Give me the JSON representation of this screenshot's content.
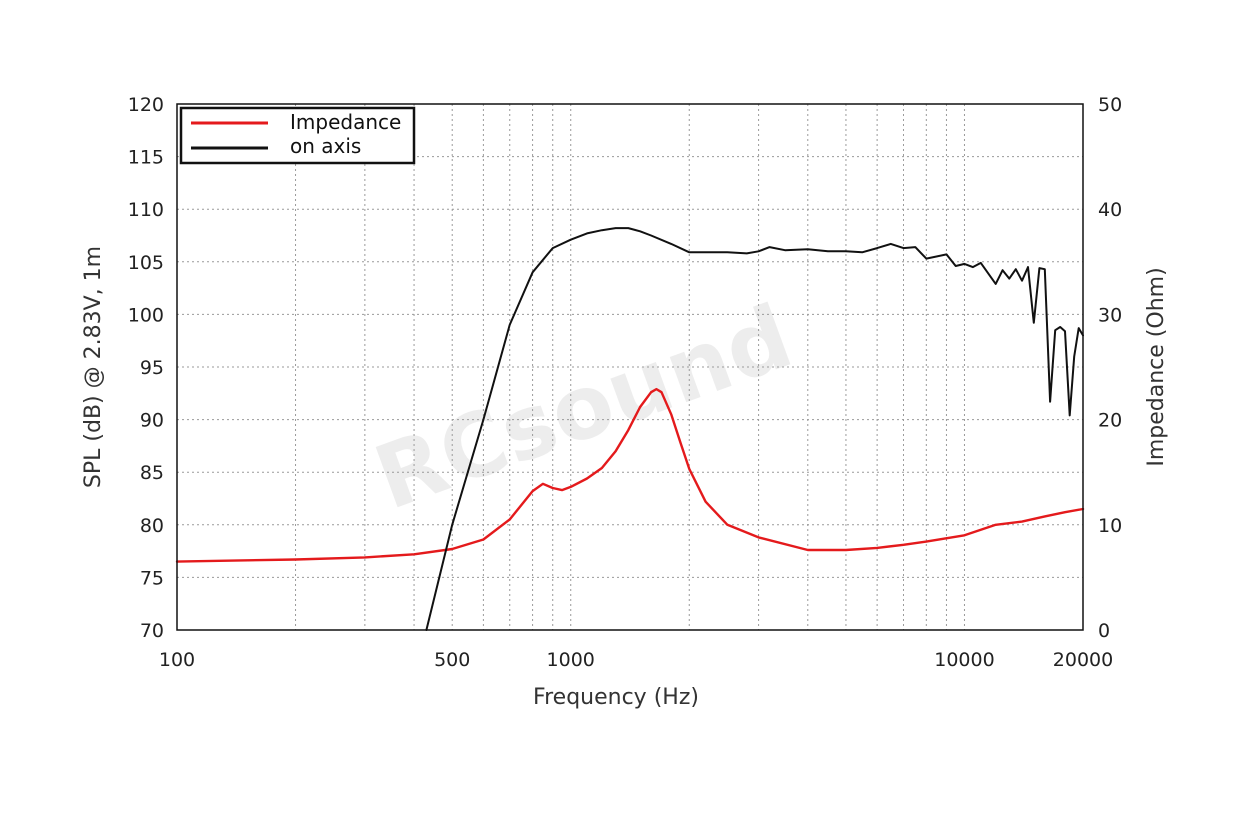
{
  "chart_data": {
    "type": "line",
    "title": "",
    "xlabel": "Frequency (Hz)",
    "ylabel": "SPL (dB) @ 2.83V, 1m",
    "y2label": "Impedance (Ohm)",
    "x_scale": "log",
    "xlim": [
      100,
      20000
    ],
    "ylim": [
      70,
      120
    ],
    "y2lim": [
      0,
      50
    ],
    "x_tick_labels": [
      "100",
      "500",
      "1000",
      "10000",
      "20000"
    ],
    "y_tick_labels": [
      "120",
      "115",
      "110",
      "105",
      "100",
      "95",
      "90",
      "85",
      "80",
      "75",
      "70"
    ],
    "y2_tick_labels": [
      "50",
      "40",
      "30",
      "20",
      "10",
      "0"
    ],
    "grid": true,
    "legend_position": "top-left",
    "watermark": "RCsound",
    "colors": {
      "impedance": "#e41a1c",
      "on_axis": "#111111"
    },
    "series": [
      {
        "name": "Impedance",
        "axis": "right",
        "color": "#e41a1c",
        "x": [
          100,
          200,
          300,
          400,
          500,
          600,
          700,
          800,
          850,
          900,
          950,
          1000,
          1100,
          1200,
          1300,
          1400,
          1500,
          1600,
          1650,
          1700,
          1800,
          1900,
          2000,
          2200,
          2500,
          3000,
          4000,
          5000,
          6000,
          7000,
          8000,
          10000,
          12000,
          14000,
          16000,
          18000,
          20000
        ],
        "values": [
          6.5,
          6.7,
          6.9,
          7.2,
          7.7,
          8.6,
          10.5,
          13.2,
          13.9,
          13.5,
          13.3,
          13.6,
          14.4,
          15.4,
          17.0,
          19.0,
          21.2,
          22.6,
          22.9,
          22.6,
          20.5,
          17.8,
          15.3,
          12.2,
          10.0,
          8.8,
          7.6,
          7.6,
          7.8,
          8.1,
          8.4,
          9.0,
          10.0,
          10.3,
          10.8,
          11.2,
          11.5
        ]
      },
      {
        "name": "on axis",
        "axis": "left",
        "color": "#111111",
        "x": [
          430,
          500,
          600,
          700,
          800,
          900,
          1000,
          1100,
          1200,
          1300,
          1400,
          1500,
          1600,
          1800,
          2000,
          2200,
          2500,
          2800,
          3000,
          3200,
          3500,
          4000,
          4500,
          5000,
          5500,
          6000,
          6500,
          7000,
          7500,
          8000,
          9000,
          9500,
          10000,
          10500,
          11000,
          12000,
          12500,
          13000,
          13500,
          14000,
          14500,
          15000,
          15500,
          16000,
          16500,
          17000,
          17500,
          18000,
          18500,
          19000,
          19500,
          20000
        ],
        "values": [
          70,
          80,
          90,
          99,
          104,
          106.3,
          107.1,
          107.7,
          108.0,
          108.2,
          108.2,
          107.9,
          107.5,
          106.7,
          105.9,
          105.9,
          105.9,
          105.8,
          106.0,
          106.4,
          106.1,
          106.2,
          106.0,
          106.0,
          105.9,
          106.3,
          106.7,
          106.3,
          106.4,
          105.3,
          105.7,
          104.6,
          104.8,
          104.5,
          104.9,
          102.9,
          104.2,
          103.4,
          104.3,
          103.2,
          104.5,
          99.2,
          104.4,
          104.3,
          91.7,
          98.5,
          98.8,
          98.4,
          90.4,
          96.0,
          98.7,
          98.0
        ]
      }
    ]
  }
}
